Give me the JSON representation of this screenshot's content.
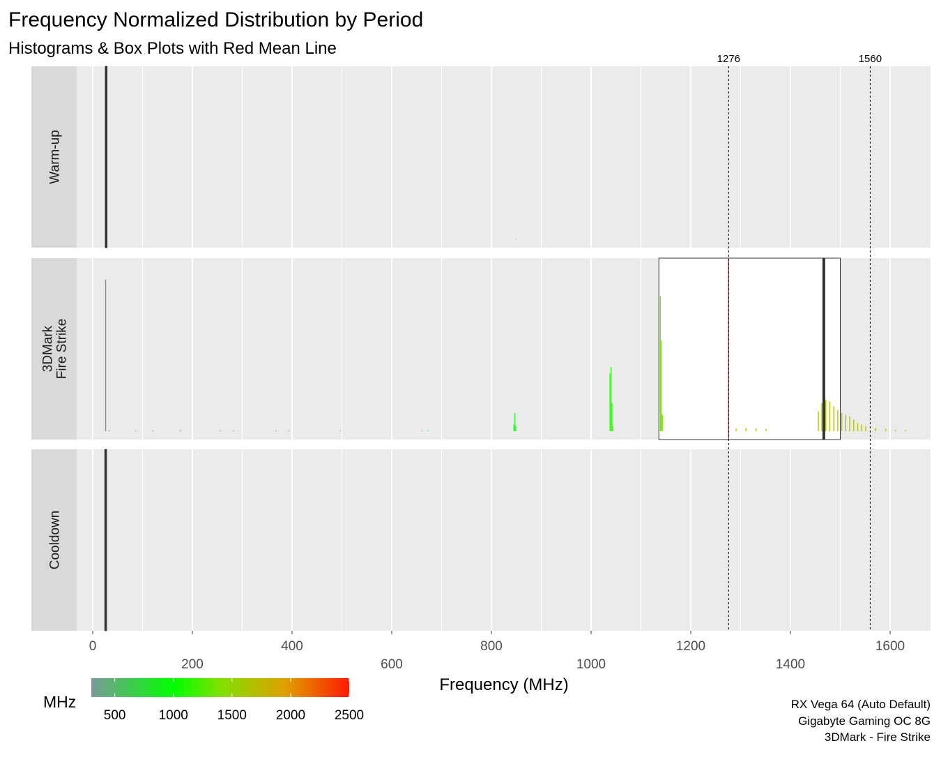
{
  "chart_data": {
    "type": "histogram",
    "title": "Frequency Normalized Distribution by Period",
    "subtitle": "Histograms & Box Plots with Red Mean Line",
    "xlabel": "Frequency (MHz)",
    "xlim": [
      -30,
      1640
    ],
    "x_ticks_top_row": [
      0,
      400,
      800,
      1200,
      1600
    ],
    "x_ticks_bottom_row": [
      200,
      600,
      1000,
      1400
    ],
    "facets": [
      "Warm-up",
      "3DMark\nFire Strike",
      "Cooldown"
    ],
    "reference_lines": [
      {
        "x": 1276,
        "label": "1276",
        "style": "dashed"
      },
      {
        "x": 1560,
        "label": "1560",
        "style": "dashed"
      }
    ],
    "panels": [
      {
        "name": "Warm-up",
        "histogram": [
          {
            "x": 27,
            "height": 1.0,
            "color": "#808f8f"
          },
          {
            "x": 848,
            "height": 0.004,
            "color": "#4ce84c"
          }
        ],
        "box": {
          "q1": 26,
          "median": 27,
          "q3": 28
        },
        "mean": 27.5
      },
      {
        "name": "3DMark Fire Strike",
        "histogram": [
          {
            "x": 25,
            "height": 0.92,
            "color": "#808f8f"
          },
          {
            "x": 32,
            "height": 0.006,
            "color": "#808f8f"
          },
          {
            "x": 85,
            "height": 0.005,
            "color": "#7f9f88"
          },
          {
            "x": 120,
            "height": 0.006,
            "color": "#7da485"
          },
          {
            "x": 175,
            "height": 0.008,
            "color": "#7aa882"
          },
          {
            "x": 255,
            "height": 0.005,
            "color": "#72b07a"
          },
          {
            "x": 282,
            "height": 0.005,
            "color": "#6fb277"
          },
          {
            "x": 367,
            "height": 0.005,
            "color": "#66bb70"
          },
          {
            "x": 393,
            "height": 0.005,
            "color": "#63be6d"
          },
          {
            "x": 496,
            "height": 0.005,
            "color": "#56cc60"
          },
          {
            "x": 660,
            "height": 0.005,
            "color": "#44de4d"
          },
          {
            "x": 672,
            "height": 0.005,
            "color": "#42e04b"
          },
          {
            "x": 844,
            "height": 0.04,
            "color": "#33f03b"
          },
          {
            "x": 846,
            "height": 0.11,
            "color": "#33f03b"
          },
          {
            "x": 848,
            "height": 0.03,
            "color": "#33f03b"
          },
          {
            "x": 1037,
            "height": 0.35,
            "color": "#3df520"
          },
          {
            "x": 1039,
            "height": 0.39,
            "color": "#40f51e"
          },
          {
            "x": 1041,
            "height": 0.17,
            "color": "#42f31c"
          },
          {
            "x": 1043,
            "height": 0.03,
            "color": "#44f21a"
          },
          {
            "x": 1138,
            "height": 0.82,
            "color": "#7ae80b"
          },
          {
            "x": 1140,
            "height": 0.55,
            "color": "#7ce80b"
          },
          {
            "x": 1142,
            "height": 0.1,
            "color": "#7ee80a"
          },
          {
            "x": 1290,
            "height": 0.016,
            "color": "#a8cc00"
          },
          {
            "x": 1310,
            "height": 0.018,
            "color": "#a8cc00"
          },
          {
            "x": 1330,
            "height": 0.016,
            "color": "#a9cb00"
          },
          {
            "x": 1350,
            "height": 0.014,
            "color": "#a9cb00"
          },
          {
            "x": 1455,
            "height": 0.12,
            "color": "#aec600"
          },
          {
            "x": 1462,
            "height": 0.17,
            "color": "#aec600"
          },
          {
            "x": 1470,
            "height": 0.19,
            "color": "#afc500"
          },
          {
            "x": 1478,
            "height": 0.18,
            "color": "#afc500"
          },
          {
            "x": 1486,
            "height": 0.15,
            "color": "#afc500"
          },
          {
            "x": 1494,
            "height": 0.13,
            "color": "#b0c400"
          },
          {
            "x": 1502,
            "height": 0.11,
            "color": "#b0c400"
          },
          {
            "x": 1510,
            "height": 0.1,
            "color": "#b0c400"
          },
          {
            "x": 1518,
            "height": 0.09,
            "color": "#b1c300"
          },
          {
            "x": 1526,
            "height": 0.07,
            "color": "#b1c300"
          },
          {
            "x": 1534,
            "height": 0.05,
            "color": "#b1c300"
          },
          {
            "x": 1542,
            "height": 0.04,
            "color": "#b2c200"
          },
          {
            "x": 1550,
            "height": 0.03,
            "color": "#b2c200"
          },
          {
            "x": 1570,
            "height": 0.02,
            "color": "#b2c200"
          },
          {
            "x": 1590,
            "height": 0.015,
            "color": "#b3c100"
          },
          {
            "x": 1610,
            "height": 0.01,
            "color": "#b3c100"
          },
          {
            "x": 1630,
            "height": 0.006,
            "color": "#b3c100"
          }
        ],
        "box": {
          "q1": 1136,
          "median": 1467,
          "q3": 1500
        },
        "mean": 1276
      },
      {
        "name": "Cooldown",
        "histogram": [
          {
            "x": 26,
            "height": 1.0,
            "color": "#808f8f"
          }
        ],
        "box": {
          "q1": 25.5,
          "median": 26,
          "q3": 26.5
        },
        "mean": 26.5
      }
    ],
    "legend": {
      "title": "MHz",
      "type": "colorbar",
      "range": [
        300,
        2500
      ],
      "ticks": [
        500,
        1000,
        1500,
        2000,
        2500
      ],
      "colors": [
        "#7a9a99",
        "#00ff00",
        "#80e000",
        "#e0a000",
        "#ff1a00"
      ],
      "stops": [
        0.0,
        0.318,
        0.5,
        0.75,
        1.0
      ],
      "placement": "bottom-left"
    },
    "caption": [
      "RX Vega 64 (Auto Default)",
      "Gigabyte Gaming OC 8G",
      "3DMark - Fire Strike"
    ]
  }
}
